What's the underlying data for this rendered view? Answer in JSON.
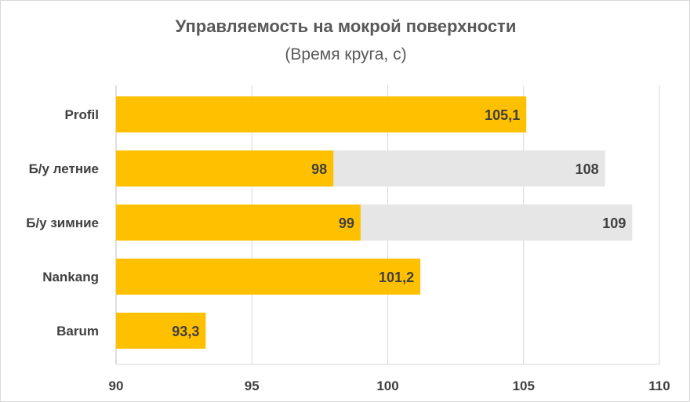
{
  "chart_data": {
    "type": "bar",
    "orientation": "horizontal",
    "title": "Управляемость на мокрой поверхности",
    "subtitle": "(Время круга, с)",
    "categories": [
      "Profil",
      "Б/у летние",
      "Б/у зимние",
      "Nankang",
      "Barum"
    ],
    "series": [
      {
        "values": [
          105.1,
          98,
          99,
          101.2,
          93.3
        ],
        "labels": [
          "105,1",
          "98",
          "99",
          "101,2",
          "93,3"
        ],
        "color": "#ffc000"
      },
      {
        "values": [
          null,
          108,
          109,
          null,
          null
        ],
        "labels": [
          "",
          "108",
          "109",
          "",
          ""
        ],
        "color": "#e7e6e6"
      }
    ],
    "xlim": [
      90,
      110
    ],
    "x_ticks": [
      "90",
      "95",
      "100",
      "105",
      "110"
    ],
    "grid": true,
    "legend": "none"
  }
}
